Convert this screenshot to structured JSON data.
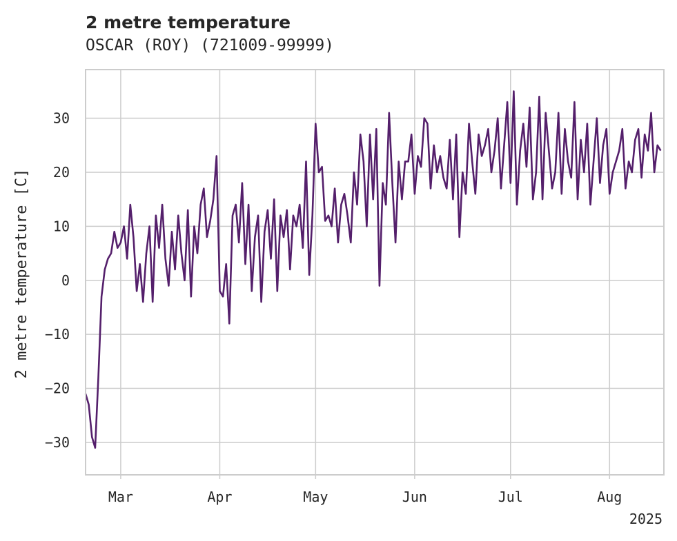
{
  "chart_data": {
    "type": "line",
    "title": "2 metre temperature",
    "subtitle": "OSCAR (ROY) (721009-99999)",
    "ylabel": "2 metre temperature [C]",
    "xlabel": "",
    "x_ticks": [
      "Mar",
      "Apr",
      "May",
      "Jun",
      "Jul",
      "Aug"
    ],
    "x_tick_dates": [
      "2025-03-01",
      "2025-04-01",
      "2025-05-01",
      "2025-06-01",
      "2025-07-01",
      "2025-08-01"
    ],
    "x_year_label": "2025",
    "y_ticks": [
      30,
      20,
      10,
      0,
      -10,
      -20,
      -30
    ],
    "xlim": [
      "2025-02-18",
      "2025-08-18"
    ],
    "ylim": [
      -36,
      39
    ],
    "grid": true,
    "line_color": "#541f6b",
    "series": [
      {
        "x": [
          "2025-02-18",
          "2025-02-19",
          "2025-02-20",
          "2025-02-21",
          "2025-02-22",
          "2025-02-23",
          "2025-02-24",
          "2025-02-25",
          "2025-02-26",
          "2025-02-27",
          "2025-02-28",
          "2025-03-01",
          "2025-03-02",
          "2025-03-03",
          "2025-03-04",
          "2025-03-05",
          "2025-03-06",
          "2025-03-07",
          "2025-03-08",
          "2025-03-09",
          "2025-03-10",
          "2025-03-11",
          "2025-03-12",
          "2025-03-13",
          "2025-03-14",
          "2025-03-15",
          "2025-03-16",
          "2025-03-17",
          "2025-03-18",
          "2025-03-19",
          "2025-03-20",
          "2025-03-21",
          "2025-03-22",
          "2025-03-23",
          "2025-03-24",
          "2025-03-25",
          "2025-03-26",
          "2025-03-27",
          "2025-03-28",
          "2025-03-29",
          "2025-03-30",
          "2025-03-31",
          "2025-04-01",
          "2025-04-02",
          "2025-04-03",
          "2025-04-04",
          "2025-04-05",
          "2025-04-06",
          "2025-04-07",
          "2025-04-08",
          "2025-04-09",
          "2025-04-10",
          "2025-04-11",
          "2025-04-12",
          "2025-04-13",
          "2025-04-14",
          "2025-04-15",
          "2025-04-16",
          "2025-04-17",
          "2025-04-18",
          "2025-04-19",
          "2025-04-20",
          "2025-04-21",
          "2025-04-22",
          "2025-04-23",
          "2025-04-24",
          "2025-04-25",
          "2025-04-26",
          "2025-04-27",
          "2025-04-28",
          "2025-04-29",
          "2025-04-30",
          "2025-05-01",
          "2025-05-02",
          "2025-05-03",
          "2025-05-04",
          "2025-05-05",
          "2025-05-06",
          "2025-05-07",
          "2025-05-08",
          "2025-05-09",
          "2025-05-10",
          "2025-05-11",
          "2025-05-12",
          "2025-05-13",
          "2025-05-14",
          "2025-05-15",
          "2025-05-16",
          "2025-05-17",
          "2025-05-18",
          "2025-05-19",
          "2025-05-20",
          "2025-05-21",
          "2025-05-22",
          "2025-05-23",
          "2025-05-24",
          "2025-05-25",
          "2025-05-26",
          "2025-05-27",
          "2025-05-28",
          "2025-05-29",
          "2025-05-30",
          "2025-05-31",
          "2025-06-01",
          "2025-06-02",
          "2025-06-03",
          "2025-06-04",
          "2025-06-05",
          "2025-06-06",
          "2025-06-07",
          "2025-06-08",
          "2025-06-09",
          "2025-06-10",
          "2025-06-11",
          "2025-06-12",
          "2025-06-13",
          "2025-06-14",
          "2025-06-15",
          "2025-06-16",
          "2025-06-17",
          "2025-06-18",
          "2025-06-19",
          "2025-06-20",
          "2025-06-21",
          "2025-06-22",
          "2025-06-23",
          "2025-06-24",
          "2025-06-25",
          "2025-06-26",
          "2025-06-27",
          "2025-06-28",
          "2025-06-29",
          "2025-06-30",
          "2025-07-01",
          "2025-07-02",
          "2025-07-03",
          "2025-07-04",
          "2025-07-05",
          "2025-07-06",
          "2025-07-07",
          "2025-07-08",
          "2025-07-09",
          "2025-07-10",
          "2025-07-11",
          "2025-07-12",
          "2025-07-13",
          "2025-07-14",
          "2025-07-15",
          "2025-07-16",
          "2025-07-17",
          "2025-07-18",
          "2025-07-19",
          "2025-07-20",
          "2025-07-21",
          "2025-07-22",
          "2025-07-23",
          "2025-07-24",
          "2025-07-25",
          "2025-07-26",
          "2025-07-27",
          "2025-07-28",
          "2025-07-29",
          "2025-07-30",
          "2025-07-31",
          "2025-08-01",
          "2025-08-02",
          "2025-08-03",
          "2025-08-04",
          "2025-08-05",
          "2025-08-06",
          "2025-08-07",
          "2025-08-08",
          "2025-08-09",
          "2025-08-10",
          "2025-08-11",
          "2025-08-12",
          "2025-08-13",
          "2025-08-14",
          "2025-08-15",
          "2025-08-16",
          "2025-08-17"
        ],
        "y": [
          -21,
          -23,
          -29,
          -31,
          -18,
          -3,
          2,
          4,
          5,
          9,
          6,
          7,
          10,
          4,
          14,
          8,
          -2,
          3,
          -4,
          5,
          10,
          -4,
          12,
          6,
          14,
          4,
          -1,
          9,
          2,
          12,
          5,
          0,
          13,
          -3,
          10,
          5,
          14,
          17,
          8,
          11,
          15,
          23,
          -2,
          -3,
          3,
          -8,
          12,
          14,
          7,
          18,
          3,
          14,
          -2,
          8,
          12,
          -4,
          9,
          13,
          4,
          15,
          -2,
          12,
          8,
          13,
          2,
          12,
          10,
          14,
          6,
          22,
          1,
          12,
          29,
          20,
          21,
          11,
          12,
          10,
          17,
          7,
          14,
          16,
          12,
          7,
          20,
          14,
          27,
          22,
          10,
          27,
          15,
          28,
          -1,
          18,
          14,
          31,
          18,
          7,
          22,
          15,
          22,
          22,
          27,
          16,
          23,
          21,
          30,
          29,
          17,
          25,
          20,
          23,
          19,
          17,
          26,
          15,
          27,
          8,
          20,
          16,
          29,
          22,
          16,
          27,
          23,
          25,
          28,
          20,
          24,
          30,
          17,
          25,
          33,
          18,
          35,
          14,
          24,
          29,
          21,
          32,
          15,
          20,
          34,
          15,
          31,
          24,
          17,
          20,
          31,
          16,
          28,
          22,
          19,
          33,
          15,
          26,
          20,
          29,
          14,
          22,
          30,
          18,
          25,
          28,
          16,
          20,
          22,
          24,
          28,
          17,
          22,
          20,
          26,
          28,
          19,
          27,
          24,
          31,
          20,
          25,
          24
        ],
        "name": ""
      }
    ]
  }
}
